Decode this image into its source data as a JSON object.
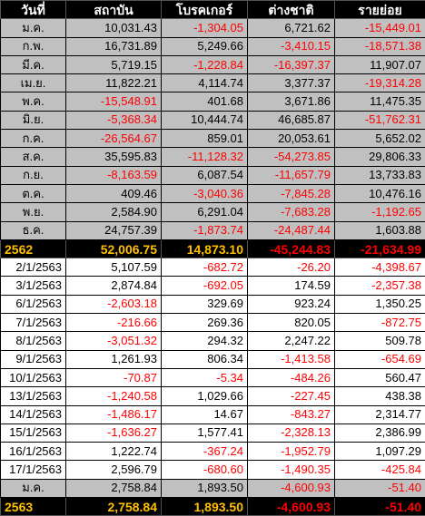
{
  "headers": [
    "วันที่",
    "สถาบัน",
    "โบรคเกอร์",
    "ต่างชาติ",
    "รายย่อย"
  ],
  "sections": [
    {
      "type": "month",
      "rows": [
        [
          "ม.ค.",
          "10,031.43",
          "-1,304.05",
          "6,721.62",
          "-15,449.01"
        ],
        [
          "ก.พ.",
          "16,731.89",
          "5,249.66",
          "-3,410.15",
          "-18,571.38"
        ],
        [
          "มี.ค.",
          "5,719.15",
          "-1,228.84",
          "-16,397.37",
          "11,907.07"
        ],
        [
          "เม.ย.",
          "11,822.21",
          "4,114.74",
          "3,377.37",
          "-19,314.28"
        ],
        [
          "พ.ค.",
          "-15,548.91",
          "401.68",
          "3,671.86",
          "11,475.35"
        ],
        [
          "มิ.ย.",
          "-5,368.34",
          "10,444.74",
          "46,685.87",
          "-51,762.31"
        ],
        [
          "ก.ค.",
          "-26,564.67",
          "859.01",
          "20,053.61",
          "5,652.02"
        ],
        [
          "ส.ค.",
          "35,595.83",
          "-11,128.32",
          "-54,273.85",
          "29,806.33"
        ],
        [
          "ก.ย.",
          "-8,163.59",
          "6,087.54",
          "-11,657.79",
          "13,733.83"
        ],
        [
          "ต.ค.",
          "409.46",
          "-3,040.36",
          "-7,845.28",
          "10,476.16"
        ],
        [
          "พ.ย.",
          "2,584.90",
          "6,291.04",
          "-7,683.28",
          "-1,192.65"
        ],
        [
          "ธ.ค.",
          "24,757.39",
          "-1,873.74",
          "-24,487.44",
          "1,603.88"
        ]
      ]
    },
    {
      "type": "total",
      "rows": [
        [
          "2562",
          "52,006.75",
          "14,873.10",
          "-45,244.83",
          "-21,634.99"
        ]
      ]
    },
    {
      "type": "daily",
      "rows": [
        [
          "2/1/2563",
          "5,107.59",
          "-682.72",
          "-26.20",
          "-4,398.67"
        ],
        [
          "3/1/2563",
          "2,874.84",
          "-692.05",
          "174.59",
          "-2,357.38"
        ],
        [
          "6/1/2563",
          "-2,603.18",
          "329.69",
          "923.24",
          "1,350.25"
        ],
        [
          "7/1/2563",
          "-216.66",
          "269.36",
          "820.05",
          "-872.75"
        ],
        [
          "8/1/2563",
          "-3,051.32",
          "294.32",
          "2,247.22",
          "509.78"
        ],
        [
          "9/1/2563",
          "1,261.93",
          "806.34",
          "-1,413.58",
          "-654.69"
        ],
        [
          "10/1/2563",
          "-70.87",
          "-5.34",
          "-484.26",
          "560.47"
        ],
        [
          "13/1/2563",
          "-1,240.58",
          "1,029.66",
          "-227.45",
          "438.38"
        ],
        [
          "14/1/2563",
          "-1,486.17",
          "14.67",
          "-843.27",
          "2,314.77"
        ],
        [
          "15/1/2563",
          "-1,636.27",
          "1,577.41",
          "-2,328.13",
          "2,386.99"
        ],
        [
          "16/1/2563",
          "1,222.74",
          "-367.24",
          "-1,952.79",
          "1,097.29"
        ],
        [
          "17/1/2563",
          "2,596.79",
          "-680.60",
          "-1,490.35",
          "-425.84"
        ]
      ]
    },
    {
      "type": "month",
      "rows": [
        [
          "ม.ค.",
          "2,758.84",
          "1,893.50",
          "-4,600.93",
          "-51.40"
        ]
      ]
    },
    {
      "type": "total",
      "rows": [
        [
          "2563",
          "2,758.84",
          "1,893.50",
          "-4,600.93",
          "-51.40"
        ]
      ]
    }
  ],
  "colors": {
    "header_bg": "#000000",
    "header_text": "#ffffff",
    "month_bg": "#c0c0c0",
    "total_bg": "#000000",
    "total_text": "#ffc000",
    "negative": "#ff0000"
  }
}
